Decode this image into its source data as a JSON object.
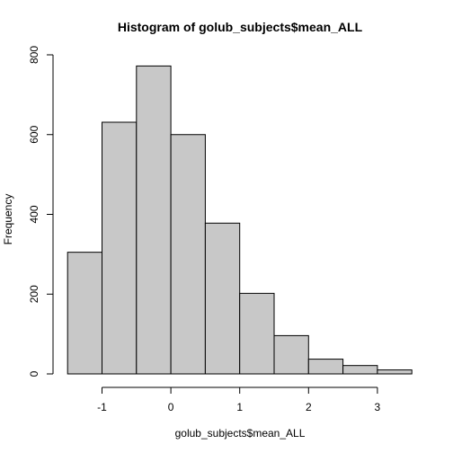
{
  "chart_data": {
    "type": "bar",
    "title": "Histogram of golub_subjects$mean_ALL",
    "xlabel": "golub_subjects$mean_ALL",
    "ylabel": "Frequency",
    "bar_fill": "#c8c8c8",
    "bins": [
      {
        "start": -1.5,
        "end": -1.0,
        "count": 305
      },
      {
        "start": -1.0,
        "end": -0.5,
        "count": 631
      },
      {
        "start": -0.5,
        "end": 0.0,
        "count": 772
      },
      {
        "start": 0.0,
        "end": 0.5,
        "count": 600
      },
      {
        "start": 0.5,
        "end": 1.0,
        "count": 378
      },
      {
        "start": 1.0,
        "end": 1.5,
        "count": 202
      },
      {
        "start": 1.5,
        "end": 2.0,
        "count": 96
      },
      {
        "start": 2.0,
        "end": 2.5,
        "count": 37
      },
      {
        "start": 2.5,
        "end": 3.0,
        "count": 21
      },
      {
        "start": 3.0,
        "end": 3.5,
        "count": 10
      }
    ],
    "xlim": [
      -1.5,
      3.5
    ],
    "ylim": [
      0,
      800
    ],
    "x_ticks": [
      {
        "value": -1,
        "label": "-1"
      },
      {
        "value": 0,
        "label": "0"
      },
      {
        "value": 1,
        "label": "1"
      },
      {
        "value": 2,
        "label": "2"
      },
      {
        "value": 3,
        "label": "3"
      }
    ],
    "y_ticks": [
      {
        "value": 0,
        "label": "0"
      },
      {
        "value": 200,
        "label": "200"
      },
      {
        "value": 400,
        "label": "400"
      },
      {
        "value": 600,
        "label": "600"
      },
      {
        "value": 800,
        "label": "800"
      }
    ],
    "grid": false
  }
}
